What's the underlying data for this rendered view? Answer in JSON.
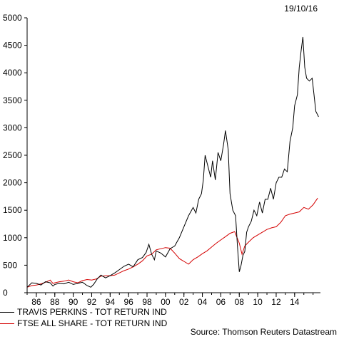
{
  "date_label": "19/10/16",
  "source": "Source: Thomson Reuters Datastream",
  "colors": {
    "series1": "#000000",
    "series2": "#d40000"
  },
  "chart_data": {
    "type": "line",
    "title": "",
    "xlabel": "",
    "ylabel": "",
    "xlim": [
      1985,
      2016.8
    ],
    "ylim": [
      0,
      5000
    ],
    "x_tick_labels": [
      "86",
      "88",
      "90",
      "92",
      "94",
      "96",
      "98",
      "00",
      "02",
      "04",
      "06",
      "08",
      "10",
      "12",
      "14"
    ],
    "x_ticks": [
      1986,
      1988,
      1990,
      1992,
      1994,
      1996,
      1998,
      2000,
      2002,
      2004,
      2006,
      2008,
      2010,
      2012,
      2014
    ],
    "y_ticks": [
      0,
      500,
      1000,
      1500,
      2000,
      2500,
      3000,
      3500,
      4000,
      4500,
      5000
    ],
    "y_tick_labels": [
      "0",
      "500",
      "1000",
      "1500",
      "2000",
      "2500",
      "3000",
      "3500",
      "4000",
      "4500",
      "5000"
    ],
    "grid": false,
    "legend_position": "bottom-left",
    "series": [
      {
        "name": "TRAVIS PERKINS - TOT RETURN IND",
        "x": [
          1985.0,
          1985.5,
          1986.0,
          1986.5,
          1987.0,
          1987.5,
          1987.8,
          1988.0,
          1988.5,
          1989.0,
          1989.5,
          1990.0,
          1990.5,
          1991.0,
          1991.5,
          1991.9,
          1992.2,
          1992.6,
          1993.0,
          1993.5,
          1994.0,
          1994.5,
          1995.0,
          1995.5,
          1996.0,
          1996.5,
          1997.0,
          1997.5,
          1997.9,
          1998.2,
          1998.5,
          1998.8,
          1999.0,
          1999.5,
          2000.0,
          2000.5,
          2001.0,
          2001.5,
          2002.0,
          2002.5,
          2003.0,
          2003.3,
          2003.6,
          2003.9,
          2004.1,
          2004.3,
          2004.6,
          2004.9,
          2005.1,
          2005.4,
          2005.7,
          2006.0,
          2006.3,
          2006.5,
          2006.8,
          2007.0,
          2007.3,
          2007.6,
          2007.8,
          2008.0,
          2008.2,
          2008.4,
          2008.6,
          2008.8,
          2009.0,
          2009.3,
          2009.6,
          2009.9,
          2010.2,
          2010.5,
          2010.8,
          2011.1,
          2011.4,
          2011.7,
          2012.0,
          2012.3,
          2012.6,
          2012.9,
          2013.2,
          2013.5,
          2013.8,
          2014.0,
          2014.3,
          2014.5,
          2014.7,
          2014.9,
          2015.1,
          2015.3,
          2015.6,
          2015.9,
          2016.1,
          2016.3,
          2016.6
        ],
        "y": [
          100,
          180,
          170,
          140,
          200,
          180,
          120,
          150,
          170,
          160,
          190,
          150,
          170,
          190,
          130,
          100,
          150,
          250,
          320,
          270,
          310,
          360,
          420,
          480,
          520,
          470,
          600,
          640,
          730,
          880,
          700,
          600,
          760,
          720,
          650,
          800,
          850,
          1000,
          1200,
          1400,
          1550,
          1450,
          1700,
          1800,
          2050,
          2500,
          2300,
          2100,
          2400,
          2050,
          2550,
          2400,
          2700,
          2950,
          2600,
          1800,
          1500,
          1400,
          850,
          380,
          500,
          680,
          750,
          1100,
          1200,
          1300,
          1500,
          1400,
          1650,
          1450,
          1700,
          1700,
          1900,
          1700,
          2000,
          2100,
          2100,
          2250,
          2200,
          2750,
          3000,
          3400,
          3600,
          4100,
          4400,
          4650,
          4100,
          3900,
          3850,
          3900,
          3600,
          3300,
          3200
        ]
      },
      {
        "name": "FTSE ALL SHARE - TOT RETURN IND",
        "x": [
          1985.0,
          1985.5,
          1986.0,
          1986.5,
          1987.0,
          1987.5,
          1987.8,
          1988.0,
          1988.5,
          1989.0,
          1989.5,
          1990.0,
          1990.5,
          1991.0,
          1991.5,
          1992.0,
          1992.5,
          1993.0,
          1993.5,
          1994.0,
          1994.5,
          1995.0,
          1995.5,
          1996.0,
          1996.5,
          1997.0,
          1997.5,
          1998.0,
          1998.5,
          1999.0,
          1999.5,
          2000.0,
          2000.5,
          2001.0,
          2001.5,
          2002.0,
          2002.5,
          2003.0,
          2003.5,
          2004.0,
          2004.5,
          2005.0,
          2005.5,
          2006.0,
          2006.5,
          2007.0,
          2007.5,
          2008.0,
          2008.3,
          2008.6,
          2009.0,
          2009.5,
          2010.0,
          2010.5,
          2011.0,
          2011.5,
          2012.0,
          2012.5,
          2013.0,
          2013.5,
          2014.0,
          2014.5,
          2015.0,
          2015.5,
          2016.0,
          2016.5
        ],
        "y": [
          100,
          130,
          140,
          160,
          190,
          230,
          170,
          180,
          200,
          210,
          230,
          200,
          180,
          220,
          240,
          230,
          250,
          300,
          310,
          310,
          320,
          360,
          400,
          430,
          470,
          520,
          580,
          670,
          700,
          780,
          800,
          820,
          810,
          720,
          620,
          570,
          520,
          600,
          650,
          710,
          760,
          830,
          900,
          960,
          1020,
          1080,
          1110,
          900,
          700,
          850,
          920,
          1000,
          1050,
          1100,
          1150,
          1180,
          1200,
          1280,
          1400,
          1430,
          1450,
          1470,
          1550,
          1520,
          1600,
          1720
        ]
      }
    ]
  }
}
